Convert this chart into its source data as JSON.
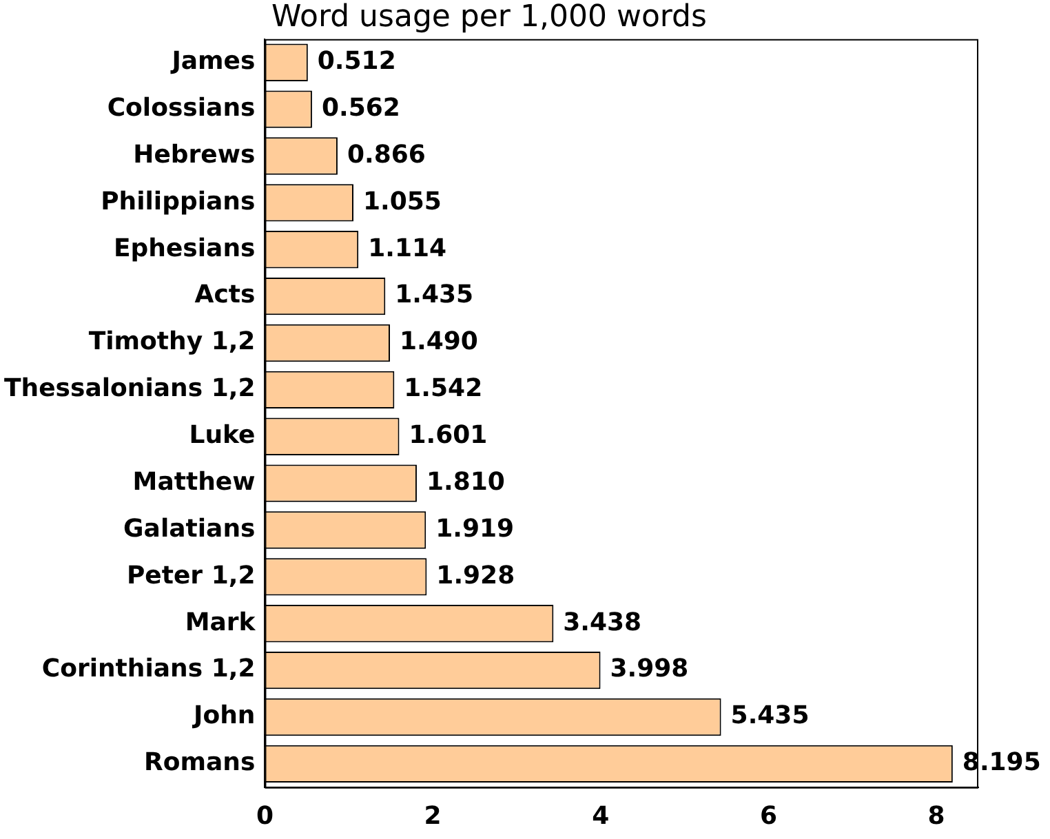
{
  "chart_data": {
    "type": "bar",
    "orientation": "horizontal",
    "title": "Word usage per 1,000 words",
    "categories": [
      "James",
      "Colossians",
      "Hebrews",
      "Philippians",
      "Ephesians",
      "Acts",
      "Timothy 1,2",
      "Thessalonians 1,2",
      "Luke",
      "Matthew",
      "Galatians",
      "Peter 1,2",
      "Mark",
      "Corinthians 1,2",
      "John",
      "Romans"
    ],
    "values": [
      0.512,
      0.562,
      0.866,
      1.055,
      1.114,
      1.435,
      1.49,
      1.542,
      1.601,
      1.81,
      1.919,
      1.928,
      3.438,
      3.998,
      5.435,
      8.195
    ],
    "value_labels": [
      "0.512",
      "0.562",
      "0.866",
      "1.055",
      "1.114",
      "1.435",
      "1.490",
      "1.542",
      "1.601",
      "1.810",
      "1.919",
      "1.928",
      "3.438",
      "3.998",
      "5.435",
      "8.195"
    ],
    "color": "#ffcc99",
    "xlim": [
      0,
      8.5
    ],
    "xticks": [
      0,
      2,
      4,
      6,
      8
    ],
    "grid": false,
    "legend": false
  }
}
